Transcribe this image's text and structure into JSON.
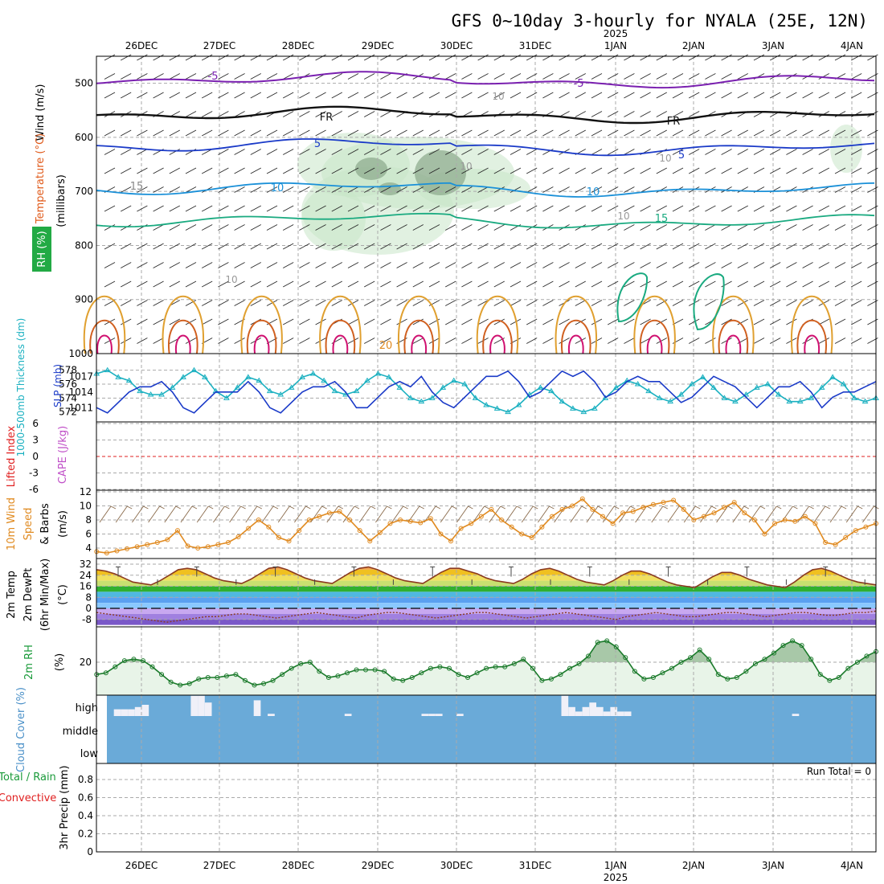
{
  "title": "GFS 0~10day 3-hourly for NYALA (25E, 12N)",
  "year_label": "2025",
  "dates": [
    "26DEC",
    "27DEC",
    "28DEC",
    "29DEC",
    "30DEC",
    "31DEC",
    "1JAN",
    "2JAN",
    "3JAN",
    "4JAN"
  ],
  "run_total_text": "Run Total = 0",
  "colors": {
    "wind_axis": "#000000",
    "temperature": "#e05a1a",
    "rh": "#1a9a3a",
    "thickness": "#1ab0c0",
    "slp": "#1a3ac8",
    "cape": "#c050c8",
    "lifted_index": "#e02020",
    "wind10": "#e08a20",
    "cloud": "#6aaad8",
    "precip_total": "#1a9a3a",
    "precip_conv": "#e02020"
  },
  "chart_data": [
    {
      "type": "heatmap",
      "panel": "upper-air",
      "ylabel_parts": [
        "Wind (m/s)",
        "Temperature (°C)",
        "RH (%)",
        "(millibars)"
      ],
      "ylim": [
        1000,
        450
      ],
      "yticks": [
        500,
        600,
        700,
        800,
        900,
        1000
      ],
      "contour_labels": [
        "-5",
        "FR",
        "5",
        "10",
        "15",
        "20",
        "-5",
        "FR",
        "5",
        "10",
        "15"
      ],
      "rh_labels": [
        "10",
        "10",
        "10",
        "10",
        "10"
      ]
    },
    {
      "type": "line",
      "panel": "thickness-slp",
      "series": [
        {
          "name": "1000-500mb Thickness (dm)",
          "yticks": [
            572,
            574,
            576,
            578
          ],
          "values": [
            577.5,
            578,
            577,
            576.5,
            575,
            574.5,
            574.5,
            575.5,
            577,
            578,
            577,
            575,
            574,
            575.5,
            577,
            576.5,
            575,
            574.5,
            575.5,
            577,
            577.5,
            576.5,
            575,
            574.5,
            575,
            576.5,
            577.5,
            577,
            575.5,
            574,
            573.5,
            574,
            575.5,
            576.5,
            576,
            574,
            573,
            572.5,
            572,
            573,
            574.5,
            575.5,
            575,
            573.5,
            572.5,
            572,
            572.5,
            574,
            575.5,
            576.5,
            576,
            575,
            574,
            573.5,
            574.5,
            576,
            577,
            575.5,
            574,
            573.5,
            574.5,
            575.5,
            576,
            574.5,
            573.5,
            573.5,
            574,
            575.5,
            577,
            576,
            574,
            573.5,
            574
          ]
        },
        {
          "name": "SLP (mb)",
          "yticks": [
            1011,
            1014,
            1017
          ],
          "values": [
            1011,
            1010,
            1012,
            1014,
            1015,
            1015,
            1016,
            1014,
            1011,
            1010,
            1012,
            1014,
            1014,
            1014,
            1016,
            1014,
            1011,
            1010,
            1012,
            1014,
            1015,
            1015,
            1016,
            1014,
            1011,
            1011,
            1013,
            1015,
            1016,
            1015,
            1017,
            1014,
            1012,
            1011,
            1013,
            1015,
            1017,
            1017,
            1018,
            1016,
            1013,
            1014,
            1016,
            1018,
            1017,
            1018,
            1016,
            1013,
            1014,
            1016,
            1017,
            1016,
            1016,
            1014,
            1012,
            1013,
            1015,
            1017,
            1016,
            1015,
            1013,
            1011,
            1013,
            1015,
            1015,
            1016,
            1014,
            1011,
            1013,
            1014,
            1014,
            1015,
            1016
          ]
        }
      ]
    },
    {
      "type": "line",
      "panel": "li-cape",
      "series_names": [
        "Lifted Index",
        "CAPE (J/kg)"
      ],
      "yticks": [
        "6",
        "3",
        "0",
        "-3",
        "-6"
      ],
      "li_zero": 0
    },
    {
      "type": "line",
      "panel": "wind10",
      "ylabel_parts": [
        "10m Wind",
        "Speed",
        "& Barbs",
        "(m/s)"
      ],
      "yticks": [
        4,
        6,
        8,
        10,
        12
      ],
      "ylim": [
        3,
        12
      ],
      "values": [
        3.5,
        3.3,
        3.6,
        3.9,
        4.2,
        4.5,
        4.8,
        5.2,
        6.5,
        4.3,
        4.0,
        4.2,
        4.5,
        4.8,
        5.6,
        6.8,
        8.0,
        7.0,
        5.5,
        5.0,
        6.5,
        8.0,
        8.5,
        9.0,
        9.2,
        8.0,
        6.5,
        5.0,
        6.2,
        7.5,
        8.0,
        7.8,
        7.6,
        8.2,
        6.0,
        5.0,
        6.8,
        7.5,
        8.5,
        9.5,
        8.0,
        7.0,
        6.0,
        5.5,
        7.0,
        8.5,
        9.5,
        10.0,
        11.0,
        9.5,
        8.5,
        7.5,
        9.0,
        9.2,
        9.8,
        10.2,
        10.5,
        10.8,
        9.5,
        8.0,
        8.5,
        9.0,
        9.8,
        10.5,
        9.0,
        8.0,
        6.0,
        7.5,
        8.0,
        7.8,
        8.5,
        7.5,
        4.8,
        4.5,
        5.5,
        6.5,
        7.0,
        7.5
      ]
    },
    {
      "type": "area",
      "panel": "temperature",
      "ylabel_parts": [
        "2m Temp",
        "2m DewPt",
        "(6hr Min/Max)",
        "(°C)"
      ],
      "yticks": [
        32,
        24,
        16,
        8,
        0,
        -8
      ],
      "ylim": [
        -12,
        32
      ],
      "temp": [
        28,
        27,
        25,
        22,
        19,
        18,
        17,
        20,
        24,
        28,
        29,
        28,
        25,
        22,
        20,
        19,
        18,
        21,
        25,
        29,
        30,
        28,
        25,
        22,
        20,
        19,
        18,
        22,
        26,
        29,
        30,
        28,
        25,
        22,
        20,
        19,
        18,
        22,
        26,
        29,
        29,
        27,
        25,
        22,
        20,
        19,
        18,
        21,
        25,
        28,
        29,
        27,
        24,
        21,
        19,
        18,
        17,
        20,
        24,
        27,
        27,
        25,
        22,
        19,
        17,
        16,
        15,
        19,
        23,
        26,
        26,
        24,
        21,
        19,
        17,
        16,
        15,
        19,
        24,
        28,
        29,
        27,
        24,
        21,
        19,
        18,
        17
      ],
      "dewpt": [
        -3,
        -4,
        -5,
        -6,
        -7,
        -8,
        -9,
        -10,
        -9,
        -8,
        -7,
        -6,
        -6,
        -5,
        -4,
        -4,
        -5,
        -6,
        -7,
        -6,
        -5,
        -4,
        -3,
        -4,
        -5,
        -6,
        -7,
        -5,
        -4,
        -3,
        -3,
        -4,
        -5,
        -6,
        -7,
        -6,
        -5,
        -4,
        -3,
        -3,
        -4,
        -5,
        -6,
        -7,
        -6,
        -5,
        -4,
        -3,
        -4,
        -5,
        -6,
        -7,
        -8,
        -6,
        -5,
        -4,
        -3,
        -4,
        -5,
        -6,
        -6,
        -5,
        -4,
        -3,
        -3,
        -4,
        -5,
        -6,
        -5,
        -4,
        -3,
        -3,
        -4,
        -5,
        -5,
        -4,
        -3,
        -3,
        -2
      ]
    },
    {
      "type": "area",
      "panel": "rh",
      "ylabel_parts": [
        "2m RH",
        "(%)"
      ],
      "yticks": [
        20
      ],
      "ylim": [
        0,
        45
      ],
      "values": [
        12,
        13,
        17,
        21,
        22,
        21,
        17,
        12,
        7,
        5,
        6,
        9,
        10,
        10,
        11,
        12,
        8,
        5,
        6,
        8,
        12,
        16,
        19,
        20,
        14,
        10,
        11,
        13,
        15,
        15,
        15,
        14,
        9,
        8,
        10,
        13,
        16,
        17,
        16,
        12,
        10,
        13,
        16,
        17,
        17,
        19,
        22,
        16,
        8,
        9,
        12,
        16,
        19,
        24,
        33,
        34,
        30,
        23,
        14,
        9,
        10,
        13,
        16,
        20,
        23,
        28,
        22,
        12,
        9,
        10,
        14,
        19,
        22,
        26,
        31,
        34,
        31,
        22,
        12,
        8,
        10,
        16,
        20,
        24,
        27
      ]
    },
    {
      "type": "bar",
      "panel": "cloud-cover",
      "ylabel": "Cloud Cover (%)",
      "levels": [
        "high",
        "middle",
        "low"
      ],
      "high_values": [
        0,
        30,
        30,
        30,
        40,
        50,
        0,
        0,
        0,
        0,
        0,
        0,
        90,
        90,
        60,
        0,
        0,
        0,
        0,
        0,
        0,
        70,
        0,
        10,
        0,
        0,
        0,
        0,
        0,
        0,
        0,
        0,
        0,
        0,
        10,
        0,
        0,
        0,
        0,
        0,
        0,
        0,
        0,
        0,
        0,
        10,
        10,
        10,
        0,
        0,
        10,
        0,
        0,
        0,
        0,
        0,
        0,
        0,
        0,
        0,
        0,
        0,
        0,
        0,
        0,
        90,
        40,
        20,
        40,
        60,
        40,
        20,
        40,
        20,
        20,
        0,
        0,
        0,
        0,
        0,
        0,
        0,
        0,
        0,
        0,
        0,
        0,
        0,
        0,
        0,
        0,
        0,
        0,
        0,
        0,
        0,
        0,
        0,
        10,
        0,
        0,
        0,
        0,
        0,
        0,
        0,
        0,
        0,
        0,
        0
      ]
    },
    {
      "type": "bar",
      "panel": "precip",
      "ylabel_parts": [
        "Total / Rain",
        "Convective",
        "3hr Precip (mm)"
      ],
      "yticks": [
        "0",
        "0.2",
        "0.4",
        "0.6",
        "0.8"
      ],
      "ylim": [
        0,
        1
      ],
      "values": []
    }
  ]
}
